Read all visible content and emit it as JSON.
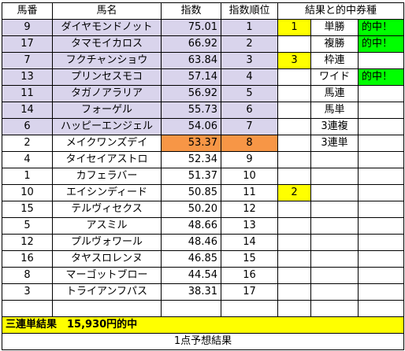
{
  "colors": {
    "top_rank": "#d9d4ec",
    "highlight": "#f79646",
    "hit_mark": "#ffff00",
    "win": "#00ff00"
  },
  "headers": {
    "umaban": "馬番",
    "name": "馬名",
    "index": "指数",
    "rank": "指数順位",
    "result": "結果と的中券種"
  },
  "rows": [
    {
      "umaban": "9",
      "name": "ダイヤモンドノット",
      "index": "75.01",
      "rank": "1",
      "mark": "1",
      "type": "単勝",
      "hit": "的中！"
    },
    {
      "umaban": "17",
      "name": "タマモイカロス",
      "index": "66.92",
      "rank": "2",
      "mark": "",
      "type": "複勝",
      "hit": "的中！"
    },
    {
      "umaban": "7",
      "name": "フクチャンショウ",
      "index": "63.84",
      "rank": "3",
      "mark": "3",
      "type": "枠連",
      "hit": ""
    },
    {
      "umaban": "13",
      "name": "プリンセスモコ",
      "index": "57.14",
      "rank": "4",
      "mark": "",
      "type": "ワイド",
      "hit": "的中！"
    },
    {
      "umaban": "11",
      "name": "タガノアラリア",
      "index": "56.92",
      "rank": "5",
      "mark": "",
      "type": "馬連",
      "hit": ""
    },
    {
      "umaban": "14",
      "name": "フォーゲル",
      "index": "55.73",
      "rank": "6",
      "mark": "",
      "type": "馬単",
      "hit": ""
    },
    {
      "umaban": "6",
      "name": "ハッピーエンジェル",
      "index": "54.06",
      "rank": "7",
      "mark": "",
      "type": "3連複",
      "hit": ""
    },
    {
      "umaban": "2",
      "name": "メイクワンズデイ",
      "index": "53.37",
      "rank": "8",
      "mark": "",
      "type": "3連単",
      "hit": ""
    },
    {
      "umaban": "4",
      "name": "タイセイアストロ",
      "index": "52.34",
      "rank": "9",
      "mark": "",
      "type": "",
      "hit": ""
    },
    {
      "umaban": "1",
      "name": "カフェラバー",
      "index": "51.37",
      "rank": "10",
      "mark": "",
      "type": "",
      "hit": ""
    },
    {
      "umaban": "10",
      "name": "エイシンディード",
      "index": "50.85",
      "rank": "11",
      "mark": "2",
      "type": "",
      "hit": ""
    },
    {
      "umaban": "15",
      "name": "テルヴィセクス",
      "index": "50.20",
      "rank": "12",
      "mark": "",
      "type": "",
      "hit": ""
    },
    {
      "umaban": "5",
      "name": "アスミル",
      "index": "48.66",
      "rank": "13",
      "mark": "",
      "type": "",
      "hit": ""
    },
    {
      "umaban": "12",
      "name": "プルヴォワール",
      "index": "48.46",
      "rank": "14",
      "mark": "",
      "type": "",
      "hit": ""
    },
    {
      "umaban": "16",
      "name": "タヤスロレンヌ",
      "index": "46.85",
      "rank": "15",
      "mark": "",
      "type": "",
      "hit": ""
    },
    {
      "umaban": "8",
      "name": "マーゴットブロー",
      "index": "44.54",
      "rank": "16",
      "mark": "",
      "type": "",
      "hit": ""
    },
    {
      "umaban": "3",
      "name": "トライアンフパス",
      "index": "38.31",
      "rank": "17",
      "mark": "",
      "type": "",
      "hit": ""
    }
  ],
  "total": "三連単結果　15,930円的中",
  "footer": "1点予想結果"
}
